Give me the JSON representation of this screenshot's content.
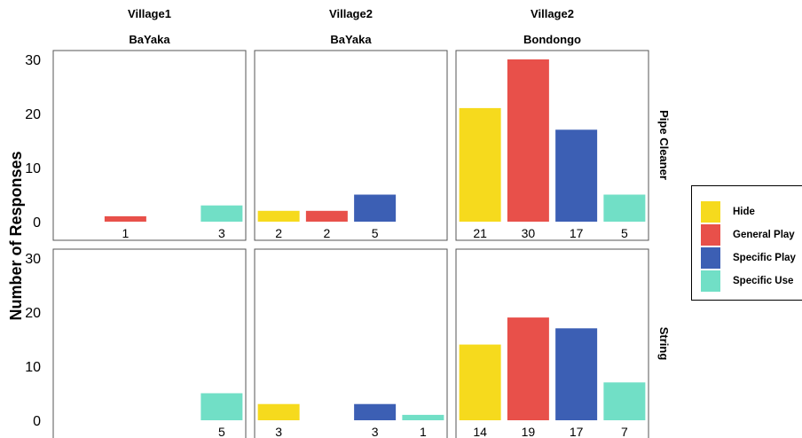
{
  "chart_data": {
    "type": "bar",
    "ylabel": "Number of Responses",
    "ylim": [
      0,
      30
    ],
    "yticks": [
      0,
      10,
      20,
      30
    ],
    "grid": false,
    "legend_position": "right",
    "categories": [
      "Hide",
      "General Play",
      "Specific Play",
      "Specific Use"
    ],
    "colors": {
      "Hide": "#f6da1d",
      "General Play": "#e8504a",
      "Specific Play": "#3c5fb4",
      "Specific Use": "#71dfc6"
    },
    "columns": [
      {
        "village": "Village1",
        "group": "BaYaka"
      },
      {
        "village": "Village2",
        "group": "BaYaka"
      },
      {
        "village": "Village2",
        "group": "Bondongo"
      }
    ],
    "rows": [
      "Pipe Cleaner",
      "String"
    ],
    "panels": [
      {
        "row": 0,
        "col": 0,
        "values": [
          null,
          1,
          null,
          3
        ],
        "labels": [
          "",
          "1",
          "",
          "3"
        ]
      },
      {
        "row": 0,
        "col": 1,
        "values": [
          2,
          2,
          5,
          null
        ],
        "labels": [
          "2",
          "2",
          "5",
          ""
        ]
      },
      {
        "row": 0,
        "col": 2,
        "values": [
          21,
          30,
          17,
          5
        ],
        "labels": [
          "21",
          "30",
          "17",
          "5"
        ]
      },
      {
        "row": 1,
        "col": 0,
        "values": [
          null,
          null,
          null,
          5
        ],
        "labels": [
          "",
          "",
          "",
          "5"
        ]
      },
      {
        "row": 1,
        "col": 1,
        "values": [
          3,
          null,
          3,
          1
        ],
        "labels": [
          "3",
          "",
          "3",
          "1"
        ]
      },
      {
        "row": 1,
        "col": 2,
        "values": [
          14,
          19,
          17,
          7
        ],
        "labels": [
          "14",
          "19",
          "17",
          "7"
        ]
      }
    ]
  },
  "legend": {
    "items": [
      {
        "label": "Hide",
        "color": "#f6da1d"
      },
      {
        "label": "General Play",
        "color": "#e8504a"
      },
      {
        "label": "Specific Play",
        "color": "#3c5fb4"
      },
      {
        "label": "Specific Use",
        "color": "#71dfc6"
      }
    ]
  }
}
